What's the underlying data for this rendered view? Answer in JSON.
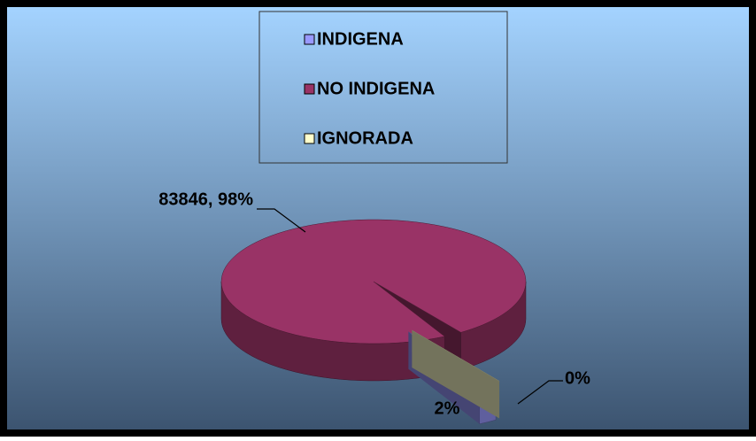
{
  "chart_data": {
    "type": "pie3d",
    "categories": [
      "INDIGENA",
      "NO INDIGENA",
      "IGNORADA"
    ],
    "values": [
      2,
      98,
      0
    ],
    "value_labels": [
      "2%",
      "83846, 98%",
      "0%"
    ],
    "colors": [
      "#9999ff",
      "#993366",
      "#ffffcc"
    ],
    "legend": "top"
  }
}
